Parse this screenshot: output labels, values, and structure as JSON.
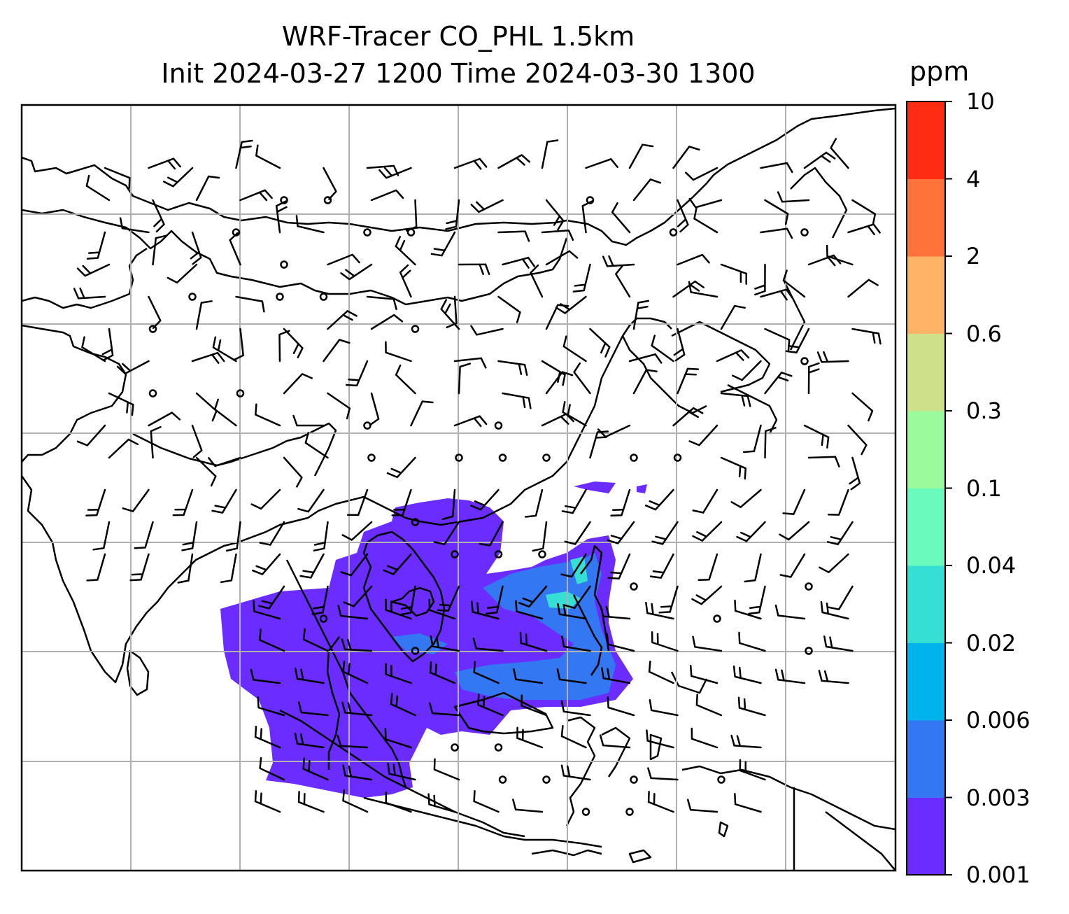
{
  "title": {
    "line1": "WRF-Tracer CO_PHL 1.5km",
    "line2": "Init 2024-03-27 1200 Time 2024-03-30 1300"
  },
  "colorbar": {
    "unit": "ppm",
    "ticks": [
      "0.001",
      "0.003",
      "0.006",
      "0.02",
      "0.04",
      "0.1",
      "0.3",
      "0.6",
      "2",
      "4",
      "10"
    ],
    "colors": [
      "#6a2cff",
      "#3377f2",
      "#00b3ec",
      "#35dfd3",
      "#69fbbe",
      "#99fb9c",
      "#cfe188",
      "#ffb366",
      "#ff7239",
      "#ff2c14"
    ]
  },
  "map": {
    "variable": "CO tracer",
    "wind_barbs": "shown",
    "gridlines": "shown",
    "coastlines": "shown"
  }
}
